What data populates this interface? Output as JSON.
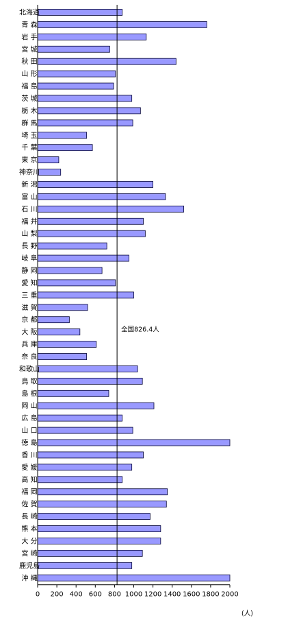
{
  "chart_data": {
    "type": "bar",
    "orientation": "horizontal",
    "categories": [
      "北海道",
      "青 森",
      "岩 手",
      "宮 城",
      "秋 田",
      "山 形",
      "福 島",
      "茨 城",
      "栃 木",
      "群 馬",
      "埼 玉",
      "千 葉",
      "東 京",
      "神奈川",
      "新 潟",
      "富 山",
      "石 川",
      "福 井",
      "山 梨",
      "長 野",
      "岐 阜",
      "静 岡",
      "愛 知",
      "三 重",
      "滋 賀",
      "京 都",
      "大 阪",
      "兵 庫",
      "奈 良",
      "和歌山",
      "鳥 取",
      "島 根",
      "岡 山",
      "広 島",
      "山 口",
      "徳 島",
      "香 川",
      "愛 媛",
      "高 知",
      "福 岡",
      "佐 賀",
      "長 崎",
      "熊 本",
      "大 分",
      "宮 崎",
      "鹿児島",
      "沖 縄"
    ],
    "values": [
      880,
      1760,
      1130,
      750,
      1440,
      810,
      790,
      980,
      1070,
      990,
      510,
      570,
      220,
      240,
      1200,
      1330,
      1520,
      1100,
      1120,
      720,
      950,
      670,
      810,
      1000,
      520,
      330,
      440,
      610,
      510,
      1040,
      1090,
      740,
      1210,
      880,
      990,
      2000,
      1100,
      980,
      880,
      1350,
      1340,
      1170,
      1280,
      1280,
      1090,
      980,
      2000
    ],
    "xlim": [
      0,
      2000
    ],
    "x_ticks": [
      "0",
      "200",
      "400",
      "600",
      "800",
      "1000",
      "1200",
      "1400",
      "1600",
      "1800",
      "2000"
    ],
    "xlabel": "(人)",
    "reference_line": {
      "value": 826.4,
      "label": "全国826.4人"
    },
    "bar_color": "#9999ff",
    "grid": false
  }
}
